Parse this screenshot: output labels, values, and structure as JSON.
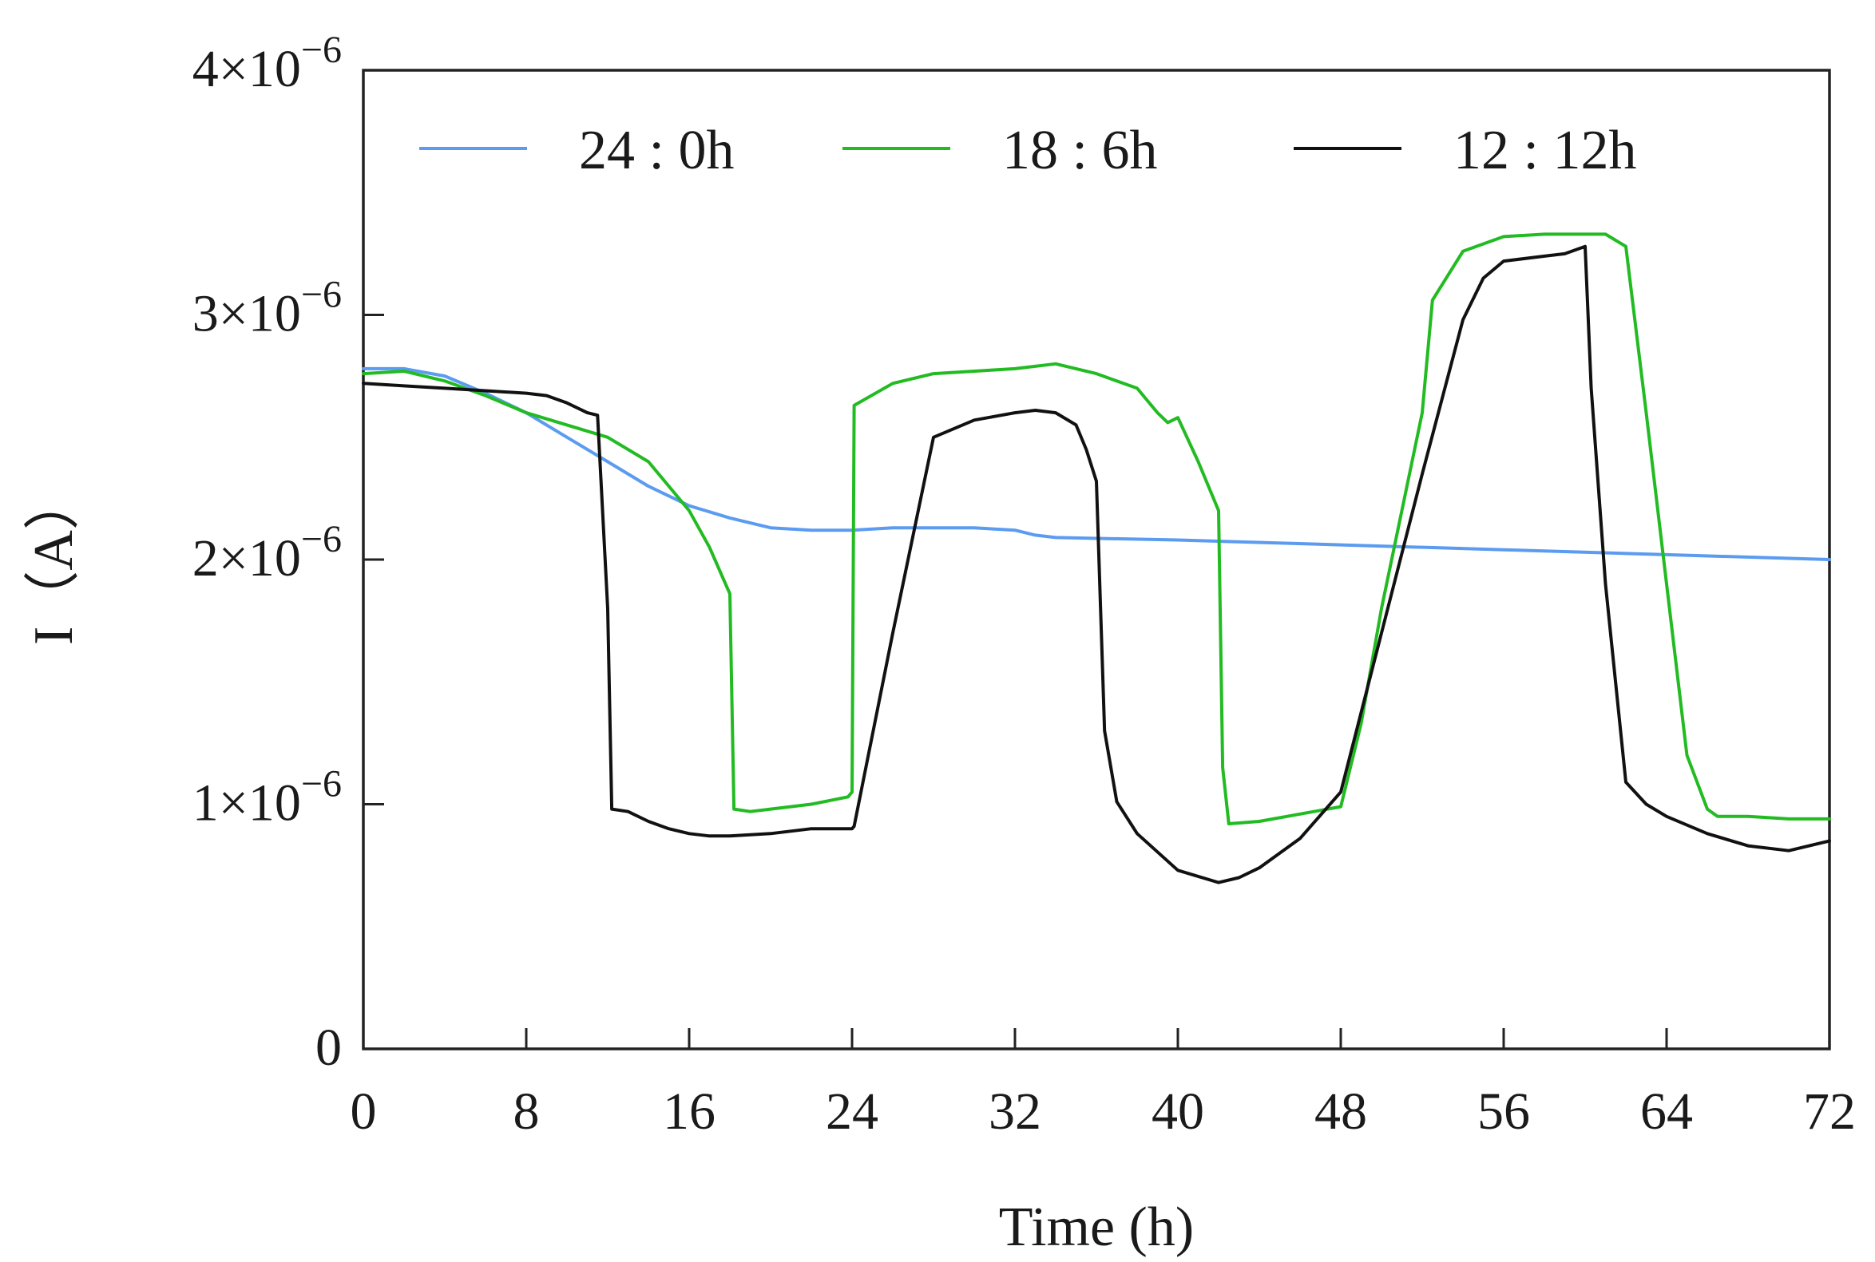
{
  "chart_data": {
    "type": "line",
    "title": "",
    "xlabel": "Time (h)",
    "ylabel": "I（A）",
    "xlim": [
      0,
      72
    ],
    "ylim": [
      0,
      4e-06
    ],
    "x_ticks": [
      0,
      8,
      16,
      24,
      32,
      40,
      48,
      56,
      64,
      72
    ],
    "x_tick_labels": [
      "0",
      "8",
      "16",
      "24",
      "32",
      "40",
      "48",
      "56",
      "64",
      "72"
    ],
    "y_ticks": [
      {
        "value": 0,
        "mantissa": "0",
        "exponent": ""
      },
      {
        "value": 1e-06,
        "mantissa": "1×10",
        "exponent": "−6"
      },
      {
        "value": 2e-06,
        "mantissa": "2×10",
        "exponent": "−6"
      },
      {
        "value": 3e-06,
        "mantissa": "3×10",
        "exponent": "−6"
      },
      {
        "value": 4e-06,
        "mantissa": "4×10",
        "exponent": "−6"
      }
    ],
    "grid": false,
    "legend_position": "top",
    "series": [
      {
        "name": "24 : 0h",
        "color": "#5b9bf0",
        "x": [
          0,
          2,
          4,
          6,
          8,
          10,
          12,
          14,
          16,
          18,
          20,
          22,
          24,
          26,
          28,
          30,
          32,
          33,
          34,
          40,
          48,
          56,
          64,
          72
        ],
        "y": [
          2.78,
          2.78,
          2.75,
          2.68,
          2.6,
          2.5,
          2.4,
          2.3,
          2.22,
          2.17,
          2.13,
          2.12,
          2.12,
          2.13,
          2.13,
          2.13,
          2.12,
          2.1,
          2.09,
          2.08,
          2.06,
          2.04,
          2.02,
          2.0
        ]
      },
      {
        "name": "18 : 6h",
        "color": "#22bb22",
        "x": [
          0,
          2,
          4,
          6,
          8,
          10,
          12,
          14,
          16,
          17,
          18,
          18.2,
          19,
          20,
          22,
          23.8,
          24,
          24.1,
          26,
          28,
          30,
          32,
          34,
          36,
          38,
          39,
          39.5,
          40,
          41,
          42,
          42.2,
          42.5,
          44,
          46,
          48,
          49,
          50,
          52,
          52.5,
          54,
          56,
          58,
          60,
          61,
          62,
          63,
          64,
          65,
          66,
          66.5,
          68,
          70,
          72
        ],
        "y": [
          2.76,
          2.77,
          2.73,
          2.67,
          2.6,
          2.55,
          2.5,
          2.4,
          2.2,
          2.05,
          1.86,
          0.98,
          0.97,
          0.98,
          1.0,
          1.03,
          1.05,
          2.63,
          2.72,
          2.76,
          2.77,
          2.78,
          2.8,
          2.76,
          2.7,
          2.6,
          2.56,
          2.58,
          2.4,
          2.2,
          1.15,
          0.92,
          0.93,
          0.96,
          0.99,
          1.33,
          1.8,
          2.6,
          3.06,
          3.26,
          3.32,
          3.33,
          3.33,
          3.33,
          3.28,
          2.6,
          1.9,
          1.2,
          0.98,
          0.95,
          0.95,
          0.94,
          0.94
        ]
      },
      {
        "name": "12 : 12h",
        "color": "#111111",
        "x": [
          0,
          2,
          4,
          6,
          8,
          9,
          10,
          11,
          11.5,
          12,
          12.2,
          13,
          14,
          15,
          16,
          17,
          18,
          20,
          22,
          24,
          24.1,
          26,
          28,
          30,
          32,
          33,
          34,
          35,
          35.5,
          36,
          36.4,
          37,
          38,
          40,
          42,
          43,
          44,
          46,
          48,
          50,
          52,
          54,
          55,
          56,
          58,
          59,
          60,
          60.3,
          61,
          62,
          63,
          64,
          66,
          68,
          70,
          72
        ],
        "y": [
          2.72,
          2.71,
          2.7,
          2.69,
          2.68,
          2.67,
          2.64,
          2.6,
          2.59,
          1.8,
          0.98,
          0.97,
          0.93,
          0.9,
          0.88,
          0.87,
          0.87,
          0.88,
          0.9,
          0.9,
          0.91,
          1.7,
          2.5,
          2.57,
          2.6,
          2.61,
          2.6,
          2.55,
          2.45,
          2.32,
          1.3,
          1.01,
          0.88,
          0.73,
          0.68,
          0.7,
          0.74,
          0.86,
          1.05,
          1.7,
          2.35,
          2.98,
          3.15,
          3.22,
          3.24,
          3.25,
          3.28,
          2.7,
          1.9,
          1.09,
          1.0,
          0.95,
          0.88,
          0.83,
          0.81,
          0.85
        ]
      }
    ]
  }
}
